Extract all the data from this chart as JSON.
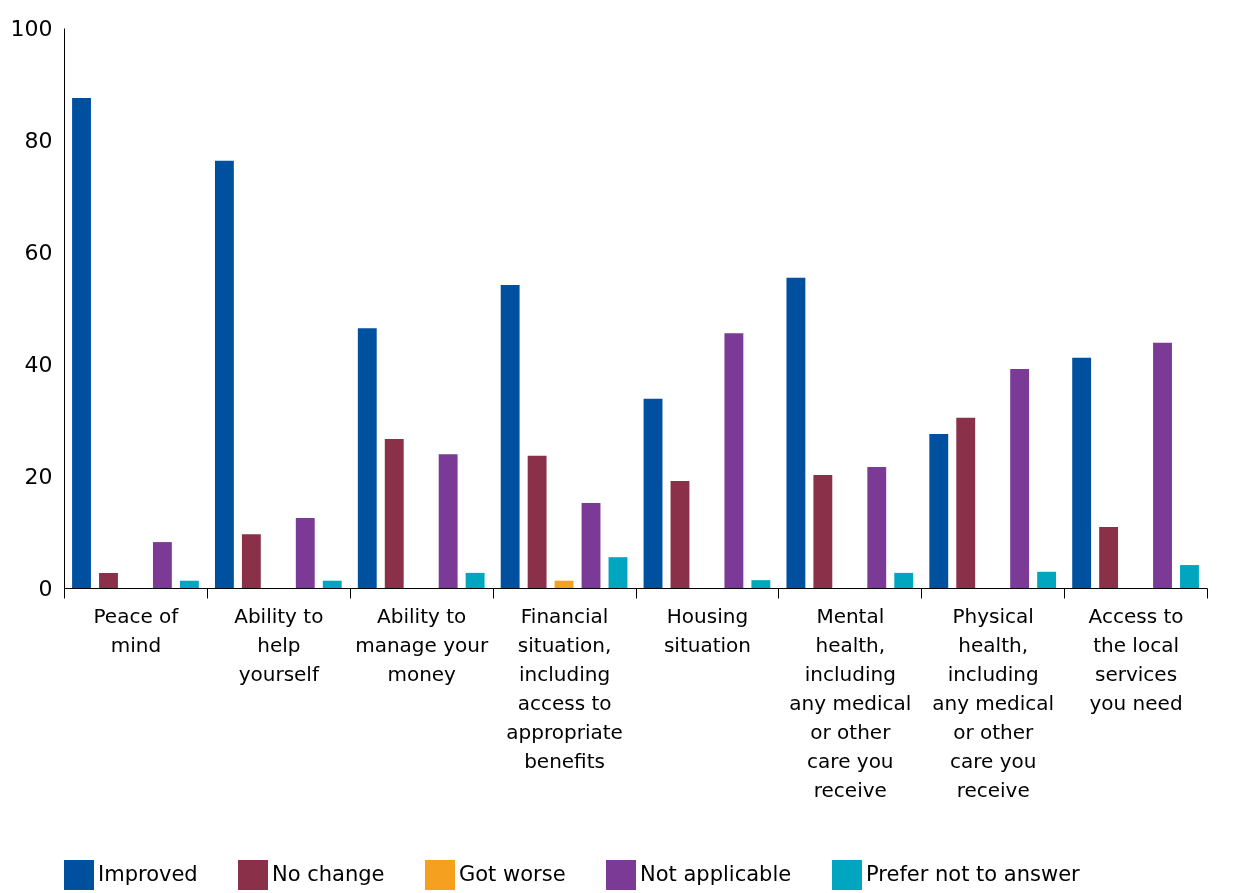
{
  "chart_data": {
    "type": "bar",
    "categories": [
      "Peace of mind",
      "Ability to help yourself",
      "Ability to manage your money",
      "Financial situation, including access to appropriate benefits",
      "Housing situation",
      "Mental health, including any medical or other care you receive",
      "Physical health, including any medical or other care you receive",
      "Access to the local services you need"
    ],
    "series": [
      {
        "name": "Improved",
        "color": "#0050a0",
        "values": [
          87.5,
          76.3,
          46.4,
          54.1,
          33.8,
          55.4,
          27.5,
          41.1
        ]
      },
      {
        "name": "No change",
        "color": "#8a3048",
        "values": [
          2.7,
          9.6,
          26.6,
          23.6,
          19.1,
          20.2,
          30.4,
          10.9
        ]
      },
      {
        "name": "Got worse",
        "color": "#f5a01e",
        "values": [
          null,
          null,
          null,
          1.3,
          null,
          null,
          null,
          null
        ]
      },
      {
        "name": "Not applicable",
        "color": "#7b3a96",
        "values": [
          8.2,
          12.5,
          23.9,
          15.2,
          45.5,
          21.6,
          39.1,
          43.8
        ]
      },
      {
        "name": "Prefer not to answer",
        "color": "#00a6c0",
        "values": [
          1.3,
          1.3,
          2.7,
          5.5,
          1.4,
          2.7,
          2.9,
          4.1
        ]
      }
    ],
    "ylim": [
      0,
      100
    ],
    "yticks": [
      0,
      20,
      40,
      60,
      80,
      100
    ],
    "legend": "bottom"
  }
}
